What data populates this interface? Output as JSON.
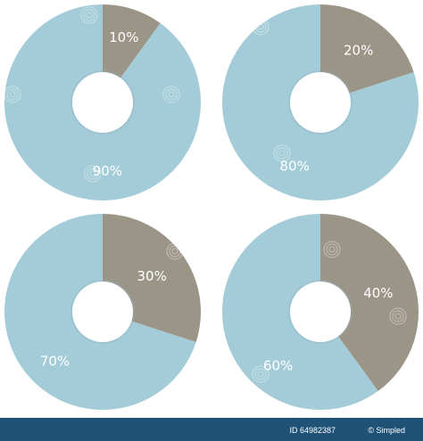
{
  "colors": {
    "major": "#a4ccd8",
    "minor": "#9b9588",
    "hole": "#ffffff",
    "label": "#ffffff",
    "footer_bg": "#1e5277",
    "footer_text": "#ffffff"
  },
  "chart_data": [
    {
      "type": "pie",
      "variant": "donut",
      "slices": [
        {
          "label": "10%",
          "value": 10,
          "color": "#9b9588"
        },
        {
          "label": "90%",
          "value": 90,
          "color": "#a4ccd8"
        }
      ]
    },
    {
      "type": "pie",
      "variant": "donut",
      "slices": [
        {
          "label": "20%",
          "value": 20,
          "color": "#9b9588"
        },
        {
          "label": "80%",
          "value": 80,
          "color": "#a4ccd8"
        }
      ]
    },
    {
      "type": "pie",
      "variant": "donut",
      "slices": [
        {
          "label": "30%",
          "value": 30,
          "color": "#9b9588"
        },
        {
          "label": "70%",
          "value": 70,
          "color": "#a4ccd8"
        }
      ]
    },
    {
      "type": "pie",
      "variant": "donut",
      "slices": [
        {
          "label": "40%",
          "value": 40,
          "color": "#9b9588"
        },
        {
          "label": "60%",
          "value": 60,
          "color": "#a4ccd8"
        }
      ]
    }
  ],
  "footer": {
    "id_text": "ID 64982387",
    "credit_text": "© Simpled"
  }
}
